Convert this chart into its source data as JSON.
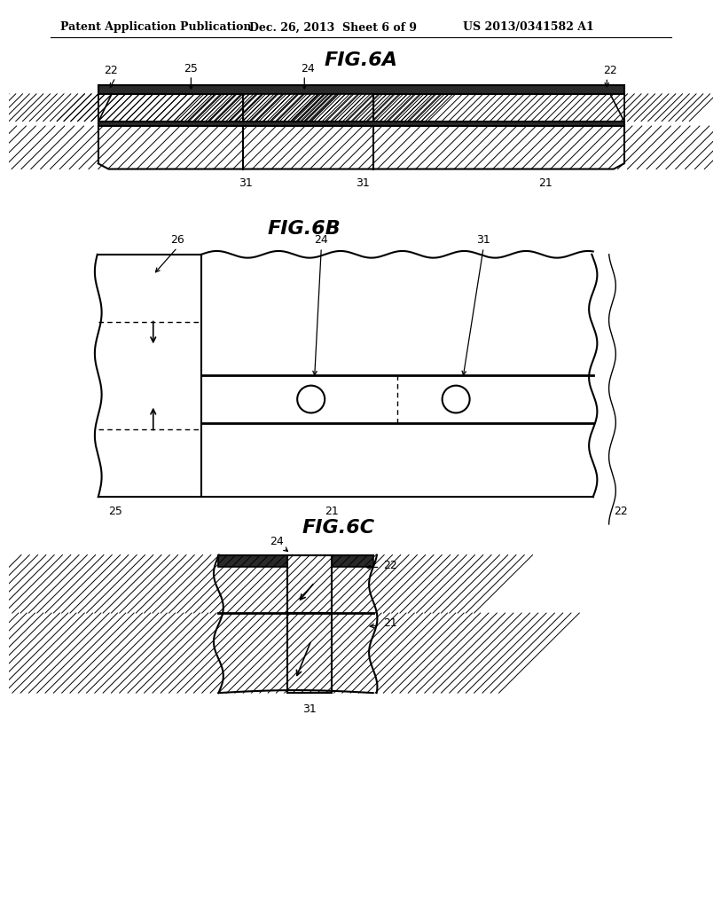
{
  "header_left": "Patent Application Publication",
  "header_mid": "Dec. 26, 2013  Sheet 6 of 9",
  "header_right": "US 2013/0341582 A1",
  "fig6a_title": "FIG.6A",
  "fig6b_title": "FIG.6B",
  "fig6c_title": "FIG.6C",
  "bg_color": "#ffffff",
  "line_color": "#000000"
}
